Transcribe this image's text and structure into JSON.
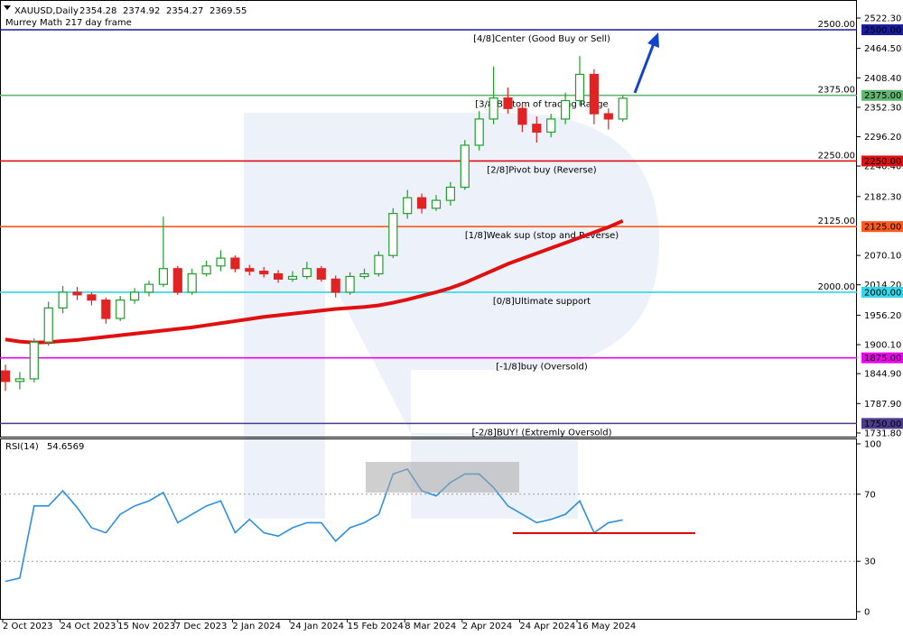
{
  "chart_data": {
    "type": "candlestick",
    "title": "XAUUSD,Daily",
    "quote": [
      2354.28,
      2374.92,
      2354.27,
      2369.55
    ],
    "subtitle": "Murrey Math 217 day frame",
    "categories": [
      "2 Oct 2023",
      null,
      null,
      null,
      "24 Oct 2023",
      null,
      null,
      null,
      "15 Nov 2023",
      null,
      null,
      null,
      "7 Dec 2023",
      null,
      null,
      null,
      "2 Jan 2024",
      null,
      null,
      null,
      "24 Jan 2024",
      null,
      null,
      null,
      "15 Feb 2024",
      null,
      null,
      null,
      "8 Mar 2024",
      null,
      null,
      null,
      "2 Apr 2024",
      null,
      null,
      null,
      "24 Apr 2024",
      null,
      null,
      null,
      "16 May 2024",
      null,
      null,
      null
    ],
    "open": [
      1850,
      1830,
      1835,
      1905,
      1970,
      2000,
      1995,
      1985,
      1950,
      1985,
      2000,
      2015,
      2045,
      2000,
      2035,
      2050,
      2065,
      2045,
      2040,
      2035,
      2025,
      2030,
      2045,
      2025,
      2000,
      2030,
      2035,
      2070,
      2150,
      2180,
      2160,
      2175,
      2200,
      2280,
      2330,
      2370,
      2350,
      2320,
      2305,
      2330,
      2365,
      2415,
      2340,
      2330
    ],
    "high": [
      1862,
      1848,
      1912,
      1982,
      2012,
      2010,
      2000,
      1990,
      1993,
      2008,
      2022,
      2144,
      2050,
      2045,
      2060,
      2080,
      2070,
      2052,
      2048,
      2042,
      2040,
      2058,
      2050,
      2032,
      2038,
      2045,
      2078,
      2160,
      2195,
      2188,
      2185,
      2210,
      2290,
      2345,
      2430,
      2390,
      2360,
      2335,
      2340,
      2380,
      2450,
      2425,
      2350,
      2375
    ],
    "low": [
      1812,
      1815,
      1828,
      1898,
      1960,
      1985,
      1975,
      1940,
      1945,
      1978,
      1992,
      2010,
      1995,
      1995,
      2030,
      2040,
      2038,
      2032,
      2028,
      2018,
      2020,
      2025,
      2020,
      1990,
      1995,
      2025,
      2030,
      2065,
      2140,
      2150,
      2155,
      2165,
      2195,
      2270,
      2320,
      2340,
      2305,
      2285,
      2295,
      2320,
      2355,
      2320,
      2310,
      2325
    ],
    "close": [
      1830,
      1835,
      1905,
      1970,
      2000,
      1995,
      1985,
      1950,
      1985,
      2000,
      2015,
      2045,
      2000,
      2035,
      2050,
      2065,
      2045,
      2040,
      2035,
      2025,
      2030,
      2045,
      2025,
      2000,
      2030,
      2035,
      2070,
      2150,
      2180,
      2160,
      2175,
      2200,
      2280,
      2330,
      2370,
      2350,
      2320,
      2305,
      2330,
      2365,
      2415,
      2340,
      2330,
      2369.55
    ],
    "up_color": "#1f9e2c",
    "down_color": "#e02424",
    "ma": {
      "color": "#e01010",
      "values": [
        1910,
        1906,
        1904,
        1905,
        1907,
        1909,
        1912,
        1915,
        1918,
        1921,
        1924,
        1927,
        1930,
        1933,
        1937,
        1941,
        1945,
        1949,
        1953,
        1956,
        1959,
        1962,
        1965,
        1968,
        1970,
        1972,
        1975,
        1980,
        1986,
        1993,
        2000,
        2008,
        2018,
        2030,
        2042,
        2054,
        2064,
        2074,
        2084,
        2094,
        2104,
        2114,
        2124,
        2136
      ]
    },
    "ylim": [
      1726.6,
      2556.7
    ],
    "yticks": [
      {
        "value": 1731.8,
        "label": "1731.80"
      },
      {
        "value": 1787.9,
        "label": "1787.90"
      },
      {
        "value": 1844.9,
        "label": "1844.90"
      },
      {
        "value": 1900.1,
        "label": "1900.10"
      },
      {
        "value": 1956.2,
        "label": "1956.20"
      },
      {
        "value": 2014.2,
        "label": "2014.20"
      },
      {
        "value": 2070.1,
        "label": "2070.10"
      },
      {
        "value": 2182.3,
        "label": "2182.30"
      },
      {
        "value": 2240.4,
        "label": "2240.40"
      },
      {
        "value": 2296.2,
        "label": "2296.20"
      },
      {
        "value": 2352.3,
        "label": "2352.30"
      },
      {
        "value": 2408.4,
        "label": "2408.40"
      },
      {
        "value": 2464.5,
        "label": "2464.50"
      },
      {
        "value": 2522.3,
        "label": "2522.30"
      }
    ],
    "levels": [
      {
        "value": 2500,
        "label": "2500.00",
        "name": "[4/8]Center (Good Buy or Sell)",
        "color": "#1c1c9e",
        "big": true
      },
      {
        "value": 2375,
        "label": "2375.00",
        "name": "[3/8]Bottom of trading Range",
        "color": "#62b572",
        "big": true
      },
      {
        "value": 2250,
        "label": "2250.00",
        "name": "[2/8]Pivot buy (Reverse)",
        "color": "#dd1111",
        "big": true
      },
      {
        "value": 2125,
        "label": "2125.00",
        "name": "[1/8]Weak sup (stop and Reverse)",
        "color": "#ff5a1e",
        "big": true
      },
      {
        "value": 2000,
        "label": "2000.00",
        "name": "[0/8]Ultimate support",
        "color": "#2fd8ea",
        "big": true
      },
      {
        "value": 1875,
        "label": "1875.00",
        "name": "[-1/8]buy (Oversold)",
        "color": "#ee00ee",
        "big": false
      },
      {
        "value": 1750,
        "label": "1750.00",
        "name": "[-2/8]BUY! (Extremly Oversold)",
        "color": "#4b3c8c",
        "big": false
      }
    ],
    "rsi": {
      "label": "RSI(14)",
      "current": 54.6569,
      "color": "#2e8fe0",
      "values": [
        18,
        20,
        63,
        63,
        72,
        62,
        50,
        47,
        58,
        63,
        66,
        71,
        53,
        58,
        63,
        66,
        47,
        55,
        47,
        45,
        50,
        53,
        53,
        42,
        50,
        53,
        58,
        82,
        85,
        72,
        69,
        77,
        82,
        82,
        74,
        63,
        58,
        53,
        55,
        58,
        66,
        47,
        53,
        54.6569
      ],
      "ylim": [
        0,
        100
      ],
      "yticks": [
        0,
        30,
        70,
        100
      ]
    }
  }
}
